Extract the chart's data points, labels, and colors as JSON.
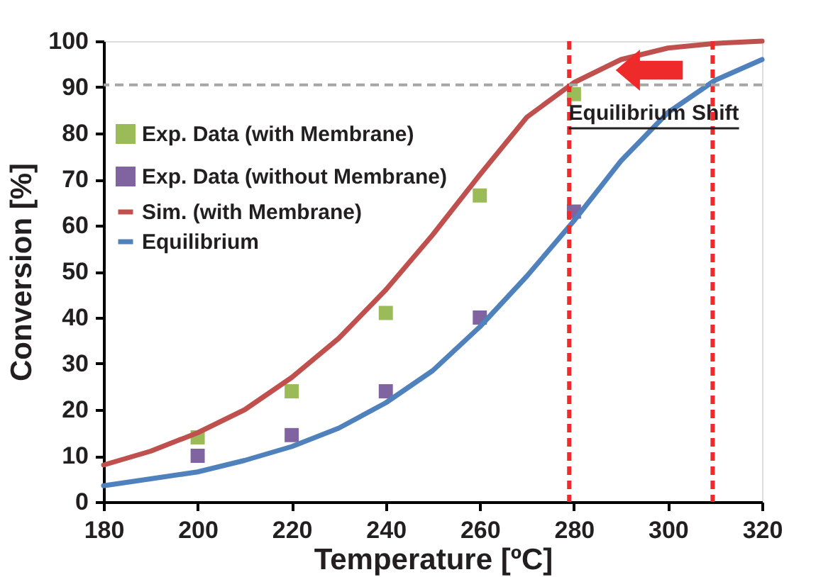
{
  "chart_data": {
    "type": "line",
    "xlabel": "Temperature [ºC]",
    "ylabel": "Conversion [%]",
    "xlim": [
      180,
      320
    ],
    "xticks": [
      180,
      200,
      220,
      240,
      260,
      280,
      300,
      320
    ],
    "ylim": [
      0,
      100
    ],
    "yticks": [
      0,
      10,
      20,
      30,
      40,
      50,
      60,
      70,
      80,
      90,
      100
    ],
    "grid": false,
    "legend": "top left",
    "series": [
      {
        "name": "Exp. Data (with Membrane)",
        "type": "scatter",
        "marker": "square",
        "color": "#9bbb59",
        "x": [
          200,
          220,
          240,
          260,
          280
        ],
        "values": [
          14,
          24,
          41,
          66.5,
          88.5
        ]
      },
      {
        "name": "Exp. Data (without Membrane)",
        "type": "scatter",
        "marker": "square",
        "color": "#8064a2",
        "x": [
          200,
          220,
          240,
          260,
          280
        ],
        "values": [
          10,
          14.5,
          24,
          40,
          63
        ]
      },
      {
        "name": "Sim.  (with Membrane)",
        "color": "#c0504d",
        "x": [
          180,
          190,
          200,
          210,
          220,
          230,
          240,
          250,
          260,
          270,
          280,
          290,
          300,
          310,
          320
        ],
        "values": [
          8,
          11,
          15,
          20,
          27,
          35.5,
          46,
          58,
          71,
          83.5,
          91,
          96,
          98.5,
          99.5,
          100
        ]
      },
      {
        "name": "Equilibrium",
        "color": "#4f81bd",
        "x": [
          180,
          190,
          200,
          210,
          220,
          230,
          240,
          250,
          260,
          270,
          280,
          290,
          300,
          310,
          320
        ],
        "values": [
          3.5,
          5,
          6.5,
          9,
          12,
          16,
          21.5,
          28.5,
          38,
          49,
          61,
          74,
          84.5,
          91.5,
          96
        ]
      }
    ],
    "ref_lines": [
      {
        "axis": "x",
        "value": 279,
        "color": "#ee2a2a",
        "line_style": "dashed"
      },
      {
        "axis": "x",
        "value": 309.5,
        "color": "#ee2a2a",
        "line_style": "dashed"
      },
      {
        "axis": "y",
        "value": 90.5,
        "color": "#a6a6a6",
        "line_style": "dashed"
      }
    ],
    "annotations": [
      {
        "text": "Equilibrium Shift",
        "x": 297,
        "y": 82
      }
    ]
  }
}
